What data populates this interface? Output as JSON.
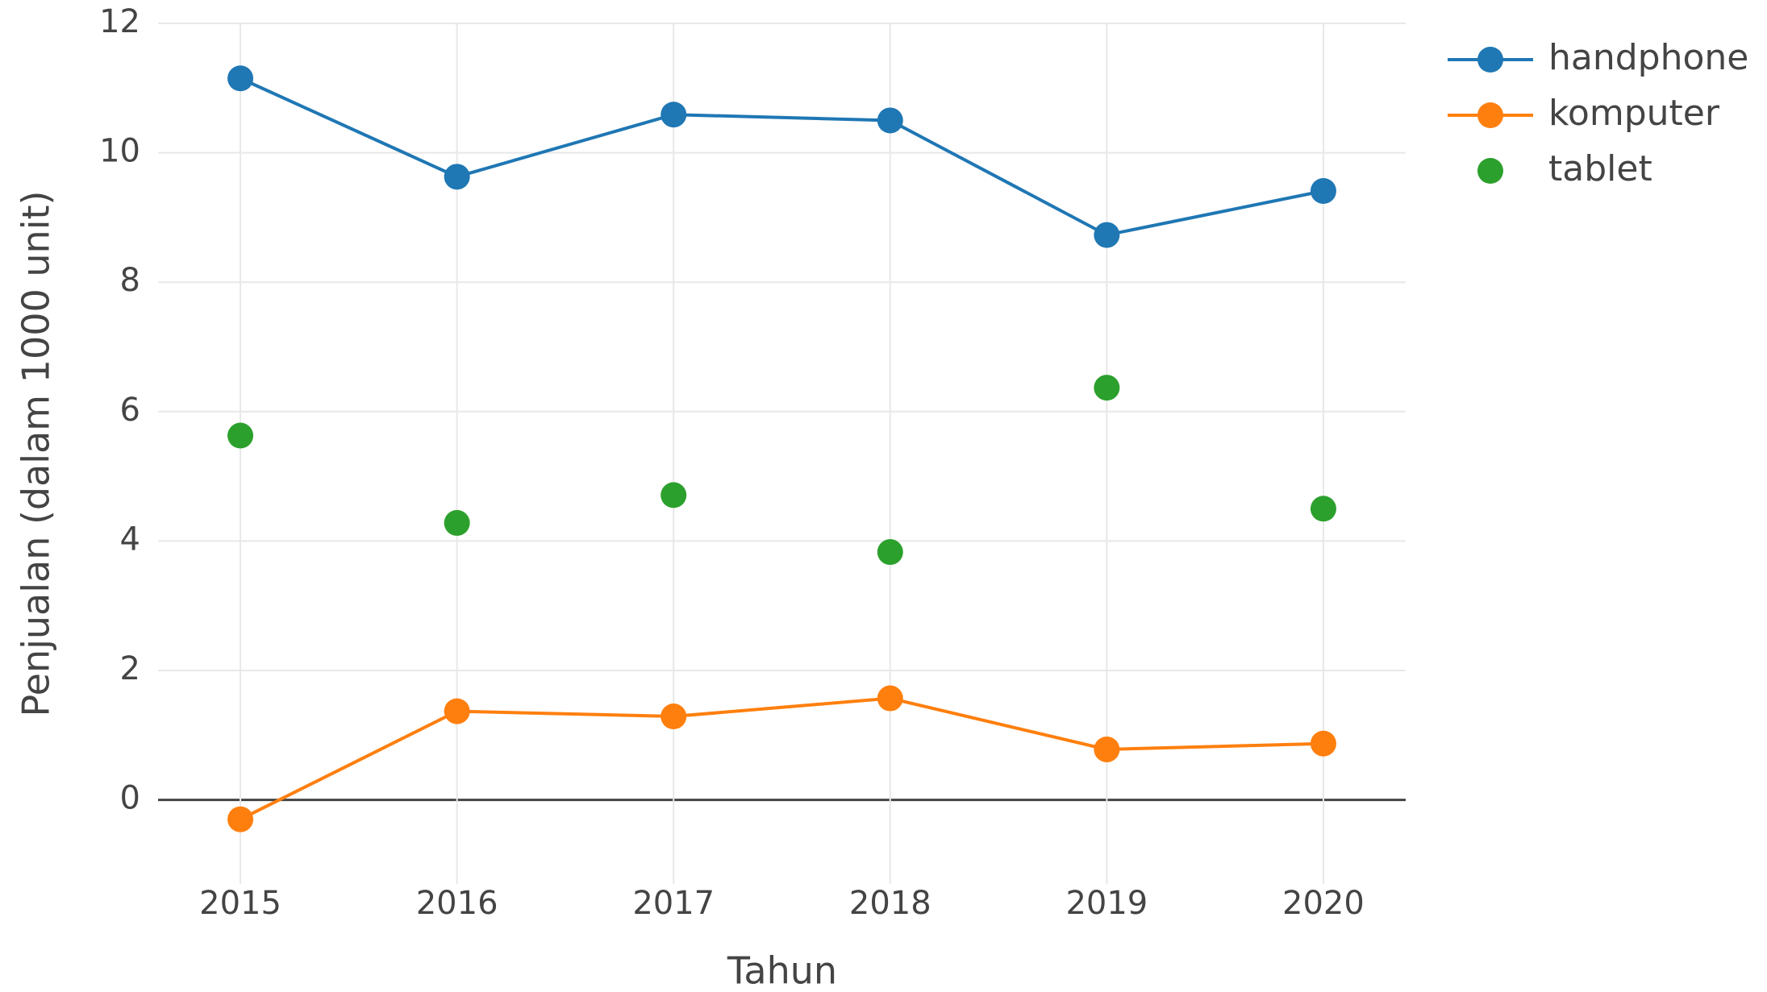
{
  "chart_data": {
    "type": "line",
    "x": [
      2015,
      2016,
      2017,
      2018,
      2019,
      2020
    ],
    "series": [
      {
        "name": "handphone",
        "color": "#1f77b4",
        "mode": "lines+markers",
        "values": [
          11.15,
          9.63,
          10.59,
          10.5,
          8.73,
          9.41
        ]
      },
      {
        "name": "komputer",
        "color": "#ff7f0e",
        "mode": "lines+markers",
        "values": [
          -0.3,
          1.37,
          1.29,
          1.57,
          0.78,
          0.87
        ]
      },
      {
        "name": "tablet",
        "color": "#2ca02c",
        "mode": "markers",
        "values": [
          5.63,
          4.28,
          4.71,
          3.83,
          6.37,
          4.5
        ]
      }
    ],
    "xlabel": "Tahun",
    "ylabel": "Penjualan (dalam 1000 unit)",
    "xlim": [
      2014.62,
      2020.38
    ],
    "ylim": [
      -1.3,
      12
    ],
    "xticks": [
      2015,
      2016,
      2017,
      2018,
      2019,
      2020
    ],
    "yticks": [
      0,
      2,
      4,
      6,
      8,
      10,
      12
    ],
    "grid": true,
    "legend": "top-right"
  }
}
